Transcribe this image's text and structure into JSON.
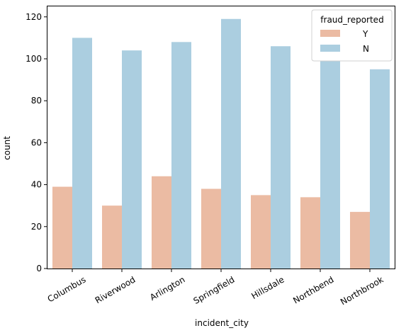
{
  "chart_data": {
    "type": "bar",
    "title": "",
    "xlabel": "incident_city",
    "ylabel": "count",
    "ylim": [
      0,
      125
    ],
    "yticks": [
      0,
      20,
      40,
      60,
      80,
      100,
      120
    ],
    "categories": [
      "Columbus",
      "Riverwood",
      "Arlington",
      "Springfield",
      "Hillsdale",
      "Northbend",
      "Northbrook"
    ],
    "series": [
      {
        "name": "Y",
        "color": "#ebbba3",
        "values": [
          39,
          30,
          44,
          38,
          35,
          34,
          27
        ]
      },
      {
        "name": "N",
        "color": "#abcee0",
        "values": [
          110,
          104,
          108,
          119,
          106,
          111,
          95
        ]
      }
    ],
    "legend": {
      "title": "fraud_reported",
      "placement": "top-right"
    },
    "grid": false
  }
}
